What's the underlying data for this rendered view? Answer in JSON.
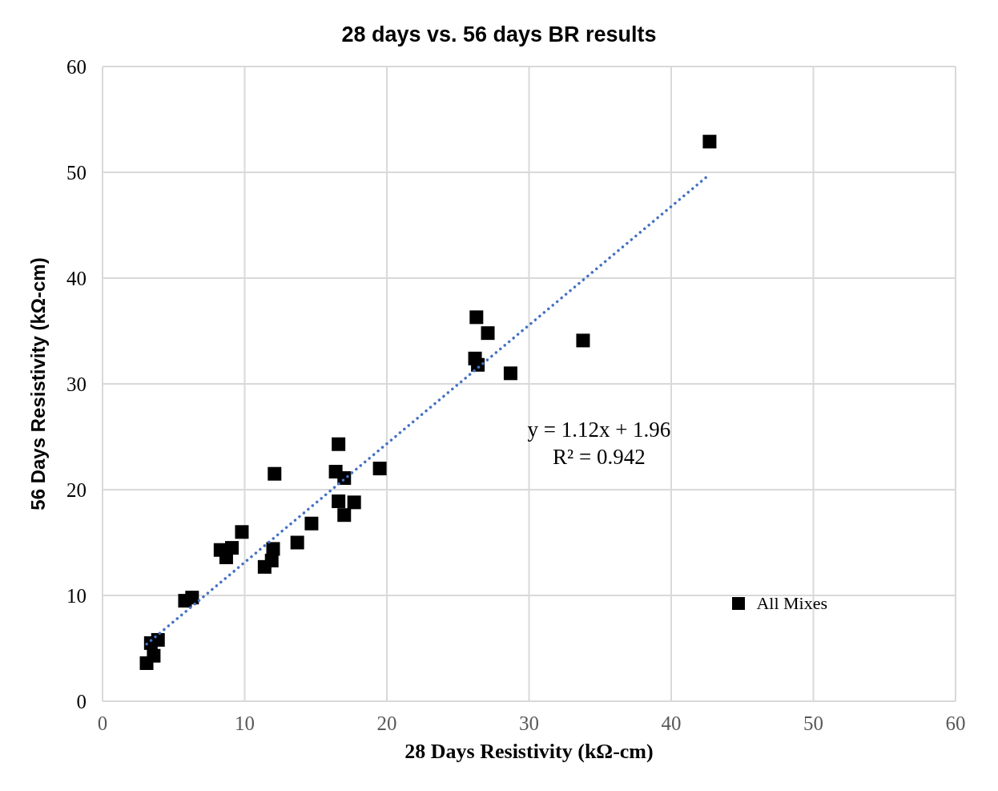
{
  "chart_data": {
    "type": "scatter",
    "title": "28 days vs. 56 days BR results",
    "xlabel": "28 Days Resistivity (kΩ-cm)",
    "ylabel": "56 Days Resistivity (kΩ-cm)",
    "xlim": [
      0,
      60
    ],
    "xticks": [
      0,
      10,
      20,
      30,
      40,
      50,
      60
    ],
    "ylim": [
      0,
      60
    ],
    "yticks": [
      0,
      10,
      20,
      30,
      40,
      50,
      60
    ],
    "grid": true,
    "legend": "bottom right",
    "series": [
      {
        "name": "All Mixes",
        "marker": "square",
        "color": "#000000",
        "x": [
          3.1,
          3.6,
          3.4,
          3.9,
          5.8,
          6.3,
          8.3,
          8.7,
          9.1,
          9.8,
          12.1,
          11.4,
          11.9,
          12.0,
          13.7,
          14.7,
          16.4,
          16.6,
          17.0,
          16.6,
          17.0,
          17.7,
          19.5,
          26.2,
          26.4,
          26.3,
          27.1,
          28.7,
          33.8,
          42.7
        ],
        "values": [
          3.6,
          4.3,
          5.5,
          5.8,
          9.5,
          9.8,
          14.3,
          13.6,
          14.5,
          16.0,
          21.5,
          12.7,
          13.3,
          14.4,
          15.0,
          16.8,
          21.7,
          24.3,
          21.1,
          18.9,
          17.6,
          18.8,
          22.0,
          32.4,
          31.8,
          36.3,
          34.8,
          31.0,
          34.1,
          52.9
        ]
      },
      {
        "type": "line",
        "marker": "none",
        "color": "#4472c4",
        "line_style": "dotted",
        "x": [
          3.1,
          42.7
        ],
        "values": [
          5.4,
          49.8
        ]
      }
    ],
    "annotations": [
      "y = 1.12x + 1.96",
      "R² = 0.942"
    ]
  }
}
